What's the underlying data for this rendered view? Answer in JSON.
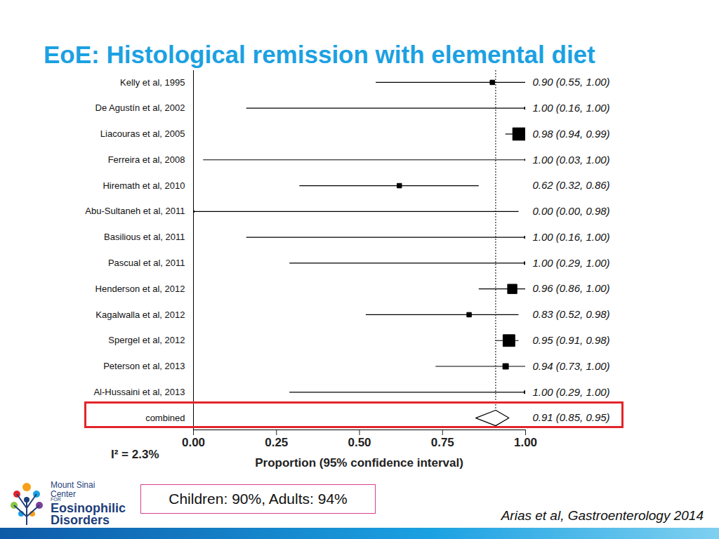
{
  "chart_data": {
    "type": "forest",
    "title": "EoE: Histological remission with elemental diet",
    "categories": [
      "Kelly et al, 1995",
      "De Agustín et al, 2002",
      "Liacouras et al, 2005",
      "Ferreira et al, 2008",
      "Hiremath et al, 2010",
      "Abu-Sultaneh et al, 2011",
      "Basilious et al, 2011",
      "Pascual et al, 2011",
      "Henderson et al, 2012",
      "Kagalwalla et al, 2012",
      "Spergel et al, 2012",
      "Peterson et al, 2013",
      "Al-Hussaini et al, 2013"
    ],
    "values": [
      0.9,
      1.0,
      0.98,
      1.0,
      0.62,
      0.0,
      1.0,
      1.0,
      0.96,
      0.83,
      0.95,
      0.94,
      1.0
    ],
    "lower": [
      0.55,
      0.16,
      0.94,
      0.03,
      0.32,
      0.0,
      0.16,
      0.29,
      0.86,
      0.52,
      0.91,
      0.73,
      0.29
    ],
    "upper": [
      1.0,
      1.0,
      0.99,
      1.0,
      0.86,
      0.98,
      1.0,
      1.0,
      1.0,
      0.98,
      0.98,
      1.0,
      1.0
    ],
    "value_labels": [
      "0.90 (0.55, 1.00)",
      "1.00 (0.16, 1.00)",
      "0.98 (0.94, 0.99)",
      "1.00 (0.03, 1.00)",
      "0.62 (0.32, 0.86)",
      "0.00 (0.00, 0.98)",
      "1.00 (0.16, 1.00)",
      "1.00 (0.29, 1.00)",
      "0.96 (0.86, 1.00)",
      "0.83 (0.52, 0.98)",
      "0.95 (0.91, 0.98)",
      "0.94 (0.73, 1.00)",
      "1.00 (0.29, 1.00)"
    ],
    "weights": [
      4,
      1,
      30,
      0.5,
      4,
      0.5,
      1,
      1.5,
      17,
      4,
      27,
      6,
      1.5
    ],
    "pooled": {
      "label": "combined",
      "value": 0.91,
      "lower": 0.85,
      "upper": 0.95,
      "value_label": "0.91 (0.85, 0.95)"
    },
    "heterogeneity": "I² = 2.3%",
    "x_label": "Proportion (95% confidence interval)",
    "xlim": [
      0,
      1
    ],
    "xticks": [
      {
        "value": 0,
        "label": "0.00"
      },
      {
        "value": 0.25,
        "label": "0.25"
      },
      {
        "value": 0.5,
        "label": "0.50"
      },
      {
        "value": 0.75,
        "label": "0.75"
      },
      {
        "value": 1,
        "label": "1.00"
      }
    ],
    "color": "#000000",
    "annotation": "Children: 90%, Adults: 94%",
    "source": "Arias et al, Gastroenterology 2014",
    "logo": [
      "Mount Sinai",
      "Center",
      "FOR",
      "Eosinophilic",
      "Disorders"
    ]
  }
}
